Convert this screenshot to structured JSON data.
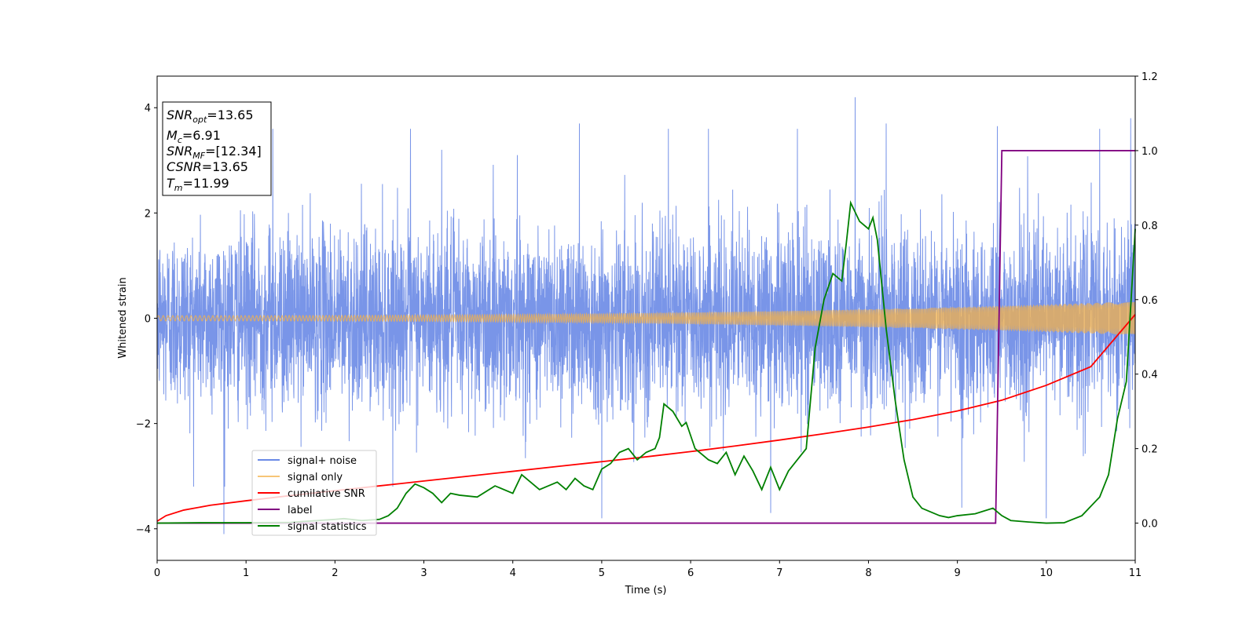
{
  "chart_data": {
    "type": "line",
    "xlabel": "Time (s)",
    "ylabel": "Whitened strain",
    "xlim": [
      0,
      11
    ],
    "ylim": [
      -4.6,
      4.6
    ],
    "y2lim": [
      -0.1,
      1.2
    ],
    "xticks": [
      "0",
      "1",
      "2",
      "3",
      "4",
      "5",
      "6",
      "7",
      "8",
      "9",
      "10",
      "11"
    ],
    "yticks": [
      "−4",
      "−2",
      "0",
      "2",
      "4"
    ],
    "y2ticks": [
      "0.0",
      "0.2",
      "0.4",
      "0.6",
      "0.8",
      "1.0",
      "1.2"
    ],
    "legend_position": "lower-left",
    "annotation": {
      "snr_opt": "=13.65",
      "mc": "=6.91",
      "snr_mf": "=[12.34]",
      "csnr": "=13.65",
      "tm": "=11.99"
    },
    "series": [
      {
        "name": "signal+ noise",
        "color": "#6a8ae6",
        "axis": "left",
        "style": "noise",
        "sigma": 0.85,
        "spikes": [
          [
            0.75,
            -4.1
          ],
          [
            4.05,
            3.1
          ],
          [
            4.75,
            3.7
          ],
          [
            5.0,
            -3.8
          ],
          [
            5.75,
            3.6
          ],
          [
            6.2,
            3.6
          ],
          [
            7.2,
            3.6
          ],
          [
            7.85,
            4.2
          ],
          [
            8.2,
            3.7
          ],
          [
            9.45,
            3.65
          ],
          [
            10.6,
            3.6
          ],
          [
            10.95,
            3.8
          ],
          [
            10.0,
            -3.8
          ],
          [
            3.2,
            3.2
          ],
          [
            1.3,
            3.6
          ],
          [
            2.85,
            3.6
          ],
          [
            6.9,
            -3.7
          ],
          [
            9.05,
            -3.6
          ]
        ]
      },
      {
        "name": "signal only",
        "color": "#f4b24a",
        "axis": "left",
        "style": "chirp",
        "amp_start": 0.05,
        "amp_end": 0.32
      },
      {
        "name": "cumilative SNR",
        "color": "#ff0000",
        "axis": "right",
        "x": [
          0,
          0.1,
          0.3,
          0.6,
          1,
          1.5,
          2,
          2.5,
          3,
          3.5,
          4,
          4.5,
          5,
          5.5,
          6,
          6.5,
          7,
          7.5,
          8,
          8.5,
          9,
          9.5,
          10,
          10.5,
          11
        ],
        "values": [
          0.005,
          0.02,
          0.035,
          0.048,
          0.06,
          0.074,
          0.087,
          0.1,
          0.113,
          0.126,
          0.139,
          0.152,
          0.165,
          0.178,
          0.192,
          0.207,
          0.223,
          0.24,
          0.258,
          0.278,
          0.301,
          0.33,
          0.37,
          0.42,
          0.56
        ]
      },
      {
        "name": "label",
        "color": "#800080",
        "axis": "right",
        "x": [
          0,
          9.43,
          9.5,
          11
        ],
        "values": [
          0,
          0,
          1,
          1
        ]
      },
      {
        "name": "signal statistics",
        "color": "#008000",
        "axis": "right",
        "x": [
          0,
          0.5,
          1,
          1.5,
          2,
          2.1,
          2.3,
          2.5,
          2.6,
          2.7,
          2.8,
          2.9,
          3.0,
          3.1,
          3.2,
          3.3,
          3.4,
          3.6,
          3.8,
          4.0,
          4.1,
          4.2,
          4.3,
          4.4,
          4.5,
          4.6,
          4.7,
          4.8,
          4.9,
          5.0,
          5.1,
          5.2,
          5.3,
          5.4,
          5.5,
          5.6,
          5.65,
          5.7,
          5.8,
          5.9,
          5.95,
          6.05,
          6.15,
          6.2,
          6.3,
          6.4,
          6.5,
          6.6,
          6.7,
          6.8,
          6.9,
          7.0,
          7.1,
          7.2,
          7.3,
          7.4,
          7.5,
          7.6,
          7.7,
          7.75,
          7.8,
          7.9,
          8.0,
          8.05,
          8.1,
          8.2,
          8.3,
          8.4,
          8.5,
          8.6,
          8.7,
          8.8,
          8.9,
          9.0,
          9.2,
          9.4,
          9.5,
          9.6,
          9.8,
          10.0,
          10.2,
          10.4,
          10.6,
          10.7,
          10.8,
          10.9,
          11.0
        ],
        "values": [
          0.0,
          0.001,
          0.001,
          0.002,
          0.01,
          0.012,
          0.007,
          0.01,
          0.02,
          0.04,
          0.08,
          0.105,
          0.095,
          0.08,
          0.055,
          0.08,
          0.075,
          0.07,
          0.1,
          0.08,
          0.13,
          0.11,
          0.09,
          0.1,
          0.11,
          0.09,
          0.12,
          0.1,
          0.09,
          0.145,
          0.16,
          0.19,
          0.2,
          0.17,
          0.19,
          0.2,
          0.23,
          0.32,
          0.3,
          0.26,
          0.27,
          0.2,
          0.18,
          0.17,
          0.16,
          0.19,
          0.13,
          0.18,
          0.14,
          0.09,
          0.15,
          0.09,
          0.14,
          0.17,
          0.2,
          0.47,
          0.6,
          0.67,
          0.65,
          0.75,
          0.86,
          0.81,
          0.79,
          0.82,
          0.76,
          0.52,
          0.33,
          0.17,
          0.07,
          0.04,
          0.03,
          0.02,
          0.015,
          0.02,
          0.025,
          0.04,
          0.02,
          0.007,
          0.003,
          0.0,
          0.001,
          0.02,
          0.07,
          0.13,
          0.28,
          0.38,
          0.79
        ]
      }
    ]
  }
}
